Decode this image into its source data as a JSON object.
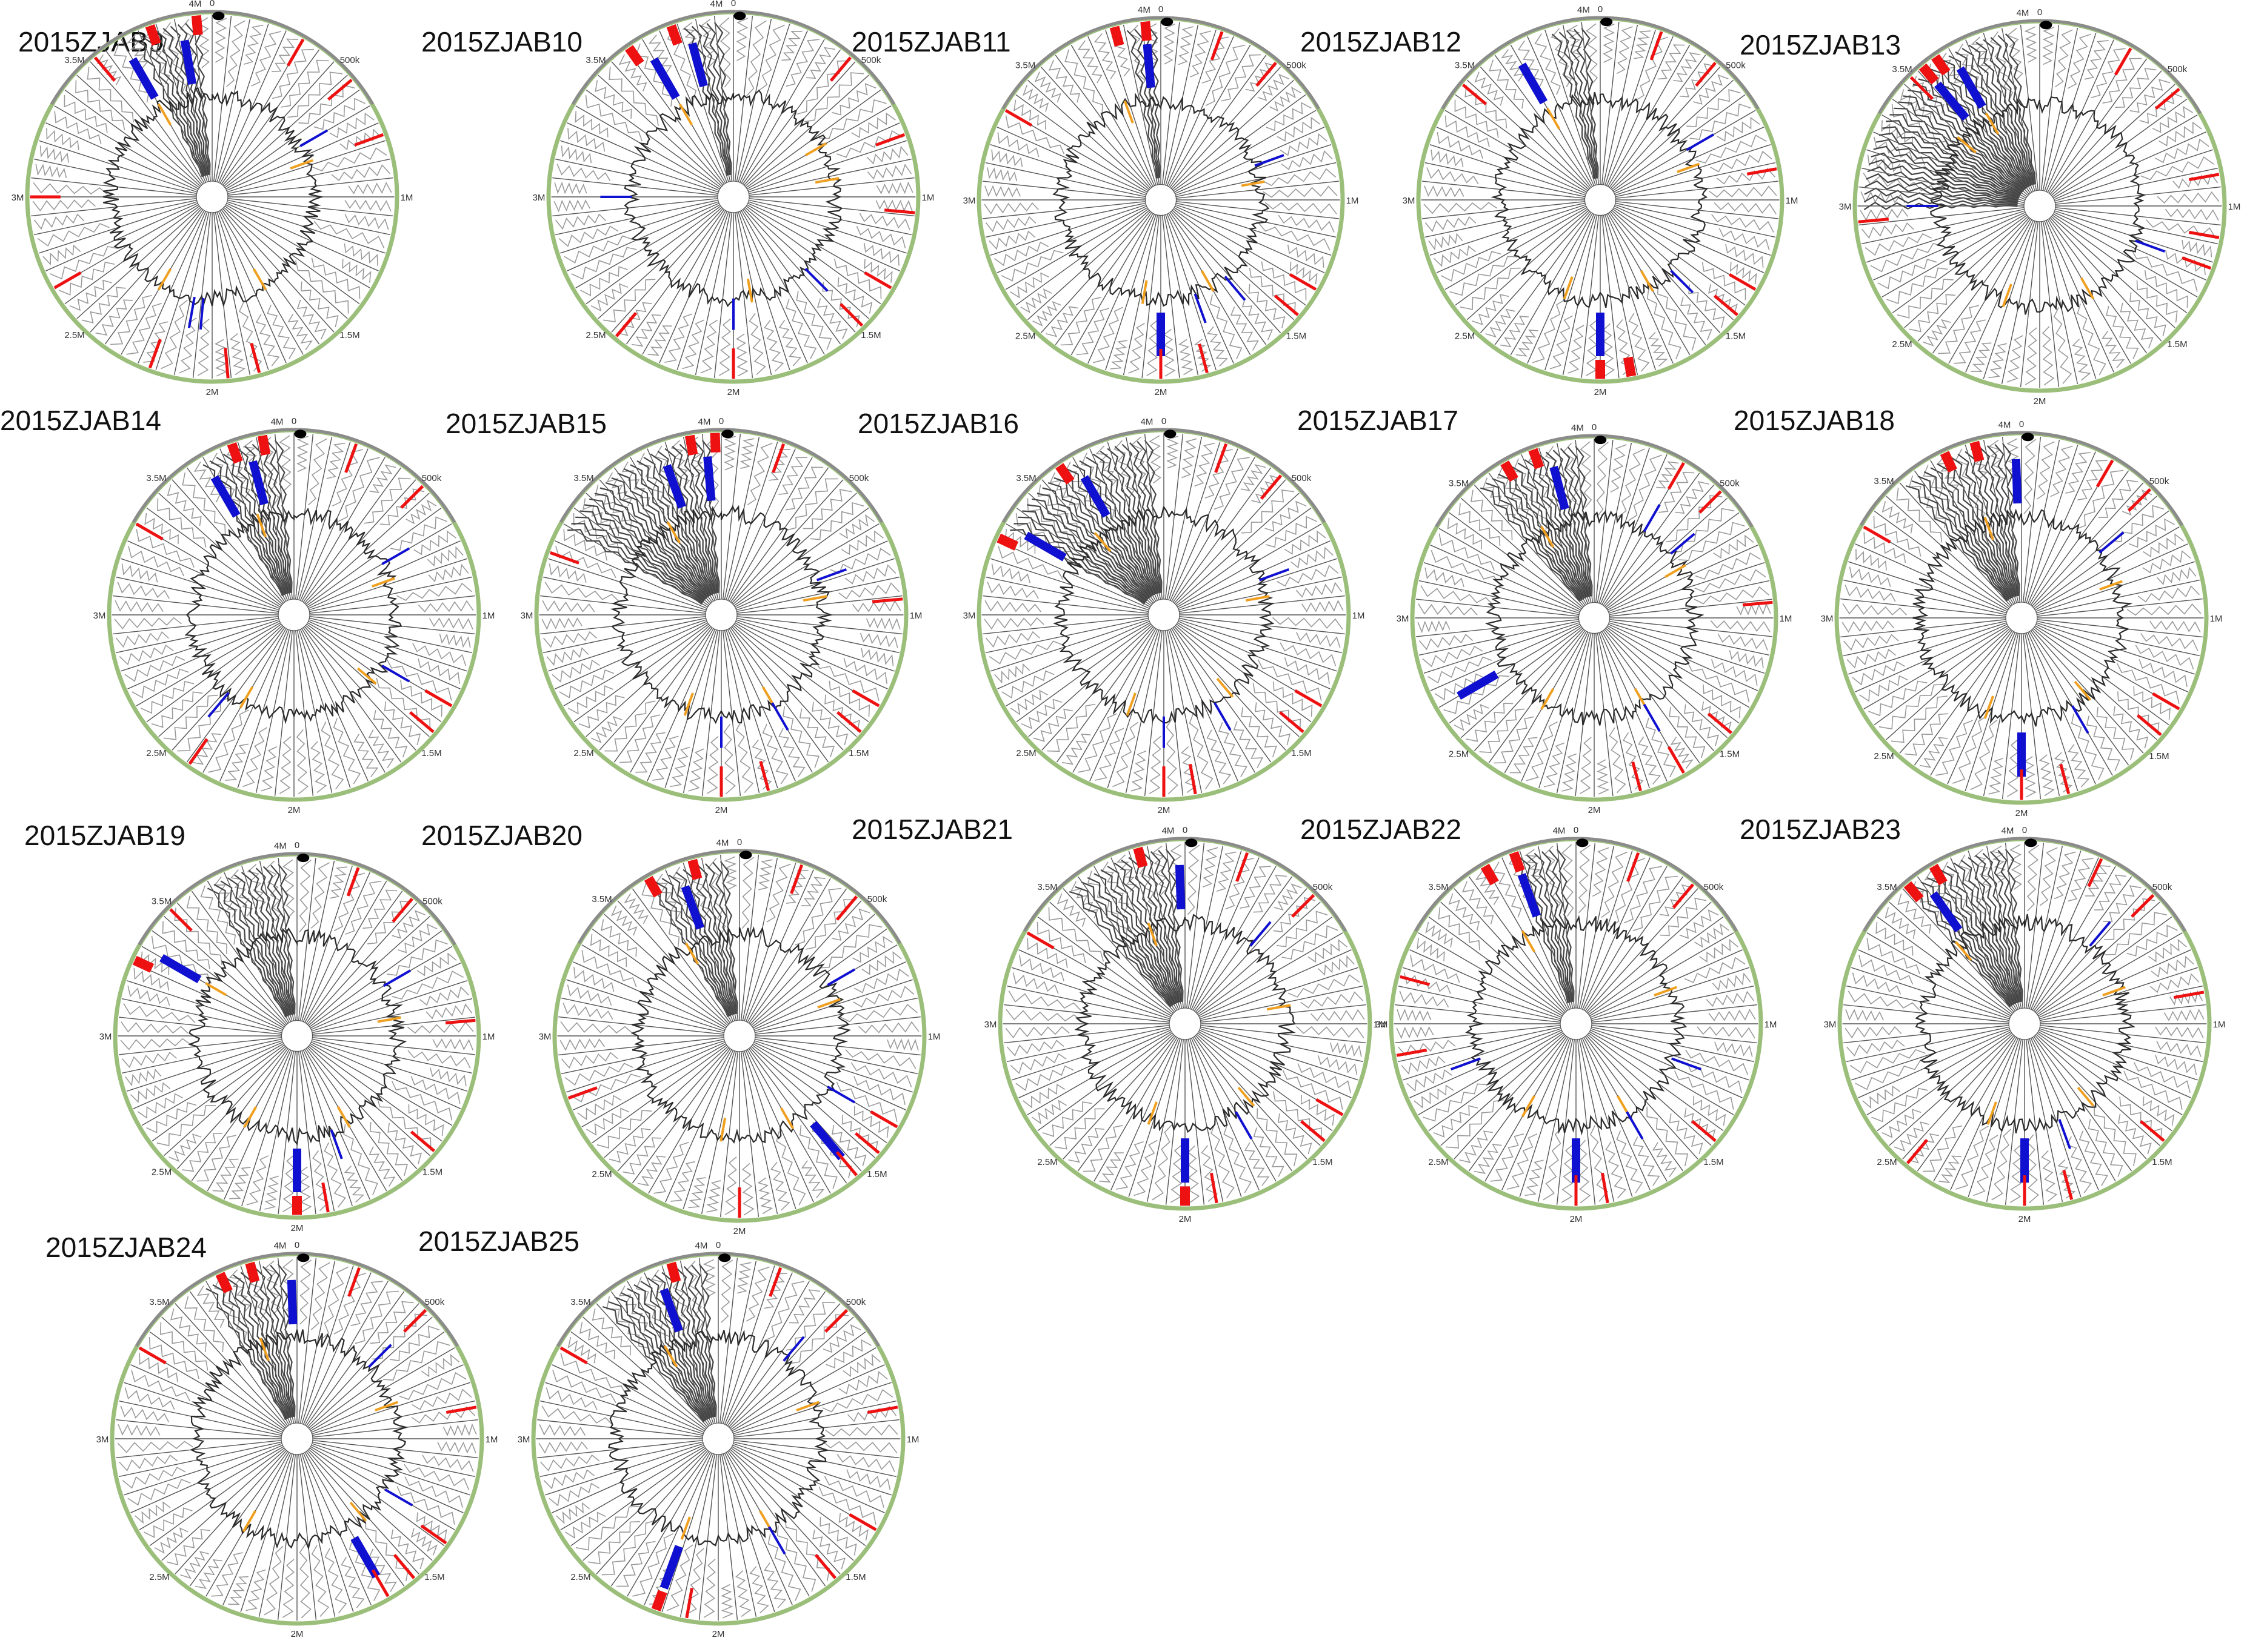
{
  "figure": {
    "panels": [
      {
        "id": "2015ZJAB9",
        "blue_angles": [
          350,
          330,
          190,
          185,
          60
        ],
        "red_angles": [
          355,
          340,
          320,
          200,
          175,
          165,
          70,
          50,
          30,
          270,
          240
        ],
        "orange_angles": [
          330,
          210,
          150,
          70
        ],
        "dark_sector": [
          335,
          355
        ]
      },
      {
        "id": "2015ZJAB10",
        "blue_angles": [
          345,
          330,
          180,
          135,
          270
        ],
        "red_angles": [
          340,
          325,
          180,
          135,
          120,
          95,
          70,
          40,
          220
        ],
        "orange_angles": [
          330,
          170,
          80,
          60
        ],
        "dark_sector": [
          345,
          355
        ]
      },
      {
        "id": "2015ZJAB11",
        "blue_angles": [
          355,
          180,
          160,
          140,
          70
        ],
        "red_angles": [
          355,
          345,
          180,
          165,
          130,
          120,
          20,
          40,
          300
        ],
        "orange_angles": [
          340,
          190,
          150,
          80
        ],
        "dark_sector": [
          350,
          358
        ]
      },
      {
        "id": "2015ZJAB12",
        "blue_angles": [
          330,
          180,
          135,
          60
        ],
        "red_angles": [
          180,
          170,
          130,
          120,
          20,
          40,
          80,
          310
        ],
        "orange_angles": [
          330,
          200,
          150,
          70
        ],
        "dark_sector": [
          345,
          355
        ]
      },
      {
        "id": "2015ZJAB13",
        "blue_angles": [
          330,
          320,
          270,
          110
        ],
        "red_angles": [
          325,
          320,
          315,
          265,
          110,
          100,
          80,
          30,
          50
        ],
        "orange_angles": [
          330,
          310,
          200,
          150
        ],
        "dark_sector": [
          270,
          350
        ]
      },
      {
        "id": "2015ZJAB14",
        "blue_angles": [
          345,
          330,
          220,
          120,
          60
        ],
        "red_angles": [
          350,
          340,
          215,
          130,
          120,
          20,
          45,
          300
        ],
        "orange_angles": [
          340,
          210,
          130,
          70
        ],
        "dark_sector": [
          330,
          355
        ]
      },
      {
        "id": "2015ZJAB15",
        "blue_angles": [
          355,
          340,
          180,
          150,
          70
        ],
        "red_angles": [
          358,
          350,
          180,
          165,
          130,
          120,
          20,
          85,
          290
        ],
        "orange_angles": [
          330,
          200,
          150,
          80
        ],
        "dark_sector": [
          300,
          355
        ]
      },
      {
        "id": "2015ZJAB16",
        "blue_angles": [
          330,
          300,
          180,
          150,
          70
        ],
        "red_angles": [
          325,
          295,
          180,
          170,
          130,
          120,
          40,
          20
        ],
        "orange_angles": [
          320,
          200,
          140,
          80
        ],
        "dark_sector": [
          300,
          355
        ]
      },
      {
        "id": "2015ZJAB17",
        "blue_angles": [
          345,
          240,
          150,
          50,
          30
        ],
        "red_angles": [
          340,
          330,
          150,
          165,
          130,
          45,
          30,
          85
        ],
        "orange_angles": [
          330,
          210,
          150,
          60
        ],
        "dark_sector": [
          320,
          355
        ]
      },
      {
        "id": "2015ZJAB18",
        "blue_angles": [
          358,
          180,
          150,
          50
        ],
        "red_angles": [
          345,
          335,
          180,
          165,
          130,
          120,
          45,
          30,
          300
        ],
        "orange_angles": [
          340,
          200,
          140,
          70
        ],
        "dark_sector": [
          320,
          355
        ]
      },
      {
        "id": "2015ZJAB19",
        "blue_angles": [
          300,
          180,
          160,
          60
        ],
        "red_angles": [
          295,
          180,
          170,
          130,
          20,
          40,
          85,
          315
        ],
        "orange_angles": [
          300,
          210,
          150,
          80
        ],
        "dark_sector": [
          330,
          355
        ]
      },
      {
        "id": "2015ZJAB20",
        "blue_angles": [
          340,
          140,
          120,
          60
        ],
        "red_angles": [
          345,
          330,
          140,
          130,
          120,
          180,
          20,
          40,
          250
        ],
        "orange_angles": [
          330,
          190,
          150,
          70
        ],
        "dark_sector": [
          330,
          355
        ]
      },
      {
        "id": "2015ZJAB21",
        "blue_angles": [
          358,
          180,
          150,
          40
        ],
        "red_angles": [
          345,
          180,
          170,
          130,
          120,
          20,
          45,
          300
        ],
        "orange_angles": [
          340,
          200,
          140,
          80
        ],
        "dark_sector": [
          320,
          355
        ]
      },
      {
        "id": "2015ZJAB22",
        "blue_angles": [
          340,
          180,
          150,
          110,
          250
        ],
        "red_angles": [
          340,
          330,
          180,
          170,
          130,
          260,
          285,
          20,
          40
        ],
        "orange_angles": [
          330,
          210,
          150,
          70
        ],
        "dark_sector": [
          340,
          355
        ]
      },
      {
        "id": "2015ZJAB23",
        "blue_angles": [
          325,
          180,
          160,
          40
        ],
        "red_angles": [
          330,
          320,
          180,
          165,
          130,
          220,
          25,
          45,
          80
        ],
        "orange_angles": [
          320,
          200,
          140,
          70
        ],
        "dark_sector": [
          320,
          355
        ]
      },
      {
        "id": "2015ZJAB24",
        "blue_angles": [
          358,
          150,
          120,
          45
        ],
        "red_angles": [
          345,
          335,
          150,
          140,
          125,
          20,
          45,
          80,
          300
        ],
        "orange_angles": [
          340,
          210,
          140,
          70
        ],
        "dark_sector": [
          330,
          355
        ]
      },
      {
        "id": "2015ZJAB25",
        "blue_angles": [
          340,
          200,
          150,
          40
        ],
        "red_angles": [
          345,
          200,
          190,
          140,
          120,
          20,
          45,
          80,
          300
        ],
        "orange_angles": [
          330,
          200,
          150,
          70
        ],
        "dark_sector": [
          320,
          355
        ]
      }
    ],
    "tick_labels": [
      "0",
      "500k",
      "1M",
      "1.5M",
      "2M",
      "2.5M",
      "3M",
      "3.5M",
      "4M"
    ],
    "tick_angles": [
      0,
      45,
      90,
      135,
      180,
      225,
      270,
      315,
      355
    ],
    "colors": {
      "ring": "#9bbf7a",
      "ring_outer": "#8b8b8b",
      "spoke": "#555555",
      "zigzag": "#9a9a9a",
      "trace": "#2a2a2a",
      "blue": "#1010d0",
      "red": "#ee1111",
      "orange": "#f0a020",
      "dot": "#000000",
      "dark_sector": "#444444"
    },
    "spoke_count": 60
  }
}
